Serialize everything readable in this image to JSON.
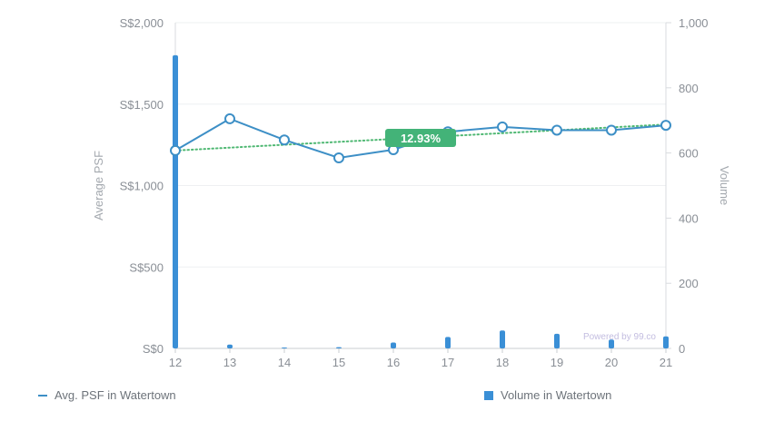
{
  "chart_data": {
    "type": "line",
    "x": [
      "12",
      "13",
      "14",
      "15",
      "16",
      "17",
      "18",
      "19",
      "20",
      "21"
    ],
    "series": [
      {
        "name": "Avg. PSF in Watertown",
        "type": "line",
        "axis": "left",
        "values": [
          1215,
          1410,
          1280,
          1170,
          1220,
          1330,
          1360,
          1340,
          1340,
          1370
        ]
      },
      {
        "name": "Volume in Watertown",
        "type": "bar",
        "axis": "right",
        "values": [
          900,
          12,
          2,
          4,
          18,
          35,
          55,
          45,
          27,
          37
        ]
      }
    ],
    "trend": {
      "start": 1215,
      "end": 1375,
      "label": "12.93%"
    },
    "ylabel_left": "Average PSF",
    "ylabel_right": "Volume",
    "ylim_left": [
      0,
      2000
    ],
    "ylim_right": [
      0,
      1000
    ],
    "yticks_left": [
      "S$0",
      "S$500",
      "S$1,000",
      "S$1,500",
      "S$2,000"
    ],
    "yticks_right": [
      "0",
      "200",
      "400",
      "600",
      "800",
      "1,000"
    ],
    "grid": true,
    "legend_position": "bottom",
    "colors": {
      "psf": "#3d8fc6",
      "volume": "#3a8fd6",
      "trend": "#4fb873",
      "badge": "#43b378"
    }
  },
  "watermark": "Powered by 99.co",
  "legend": {
    "psf_label": "Avg. PSF in Watertown",
    "volume_label": "Volume in Watertown"
  }
}
